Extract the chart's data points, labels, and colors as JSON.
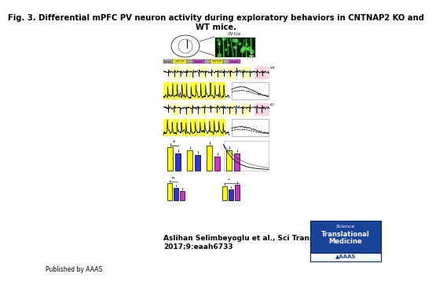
{
  "title_line1": "Fig. 3. Differential mPFC PV neuron activity during exploratory behaviors in CNTNAP2 KO and",
  "title_line2": "WT mice.",
  "citation_line1": "Aslihan Selimbeyoglu et al., Sci Transl Med",
  "citation_line2": "2017;9:eaah6733",
  "published_by": "Published by AAAS",
  "background_color": "#ffffff",
  "title_fontsize": 7.2,
  "citation_fontsize": 6.5,
  "published_fontsize": 5.5
}
